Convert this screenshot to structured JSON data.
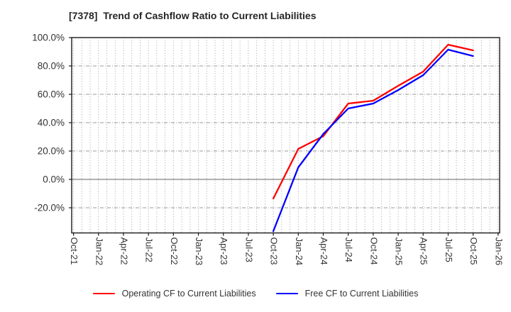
{
  "title": "[7378]  Trend of Cashflow Ratio to Current Liabilities",
  "chart_data": {
    "type": "line",
    "categories": [
      "Oct-21",
      "Jan-22",
      "Apr-22",
      "Jul-22",
      "Oct-22",
      "Jan-23",
      "Apr-23",
      "Jul-23",
      "Oct-23",
      "Jan-24",
      "Apr-24",
      "Jul-24",
      "Oct-24",
      "Jan-25",
      "Apr-25",
      "Jul-25",
      "Oct-25",
      "Jan-26"
    ],
    "series": [
      {
        "name": "Operating CF to Current Liabilities",
        "color": "#ff0000",
        "values": [
          null,
          null,
          null,
          null,
          null,
          null,
          null,
          null,
          -13.5,
          21.5,
          30.5,
          53.5,
          55.5,
          66,
          76,
          95,
          91,
          null
        ]
      },
      {
        "name": "Free CF to Current Liabilities",
        "color": "#0000ff",
        "values": [
          null,
          null,
          null,
          null,
          null,
          null,
          null,
          null,
          -36.5,
          8.5,
          32,
          50,
          53.5,
          63,
          73.5,
          91.5,
          87,
          null
        ]
      }
    ],
    "ytick_values": [
      100,
      80,
      60,
      40,
      20,
      0,
      -20
    ],
    "ytick_labels": [
      "100.0%",
      "80.0%",
      "60.0%",
      "40.0%",
      "20.0%",
      "0.0%",
      "-20.0%"
    ],
    "ylim": [
      -37.9,
      100
    ],
    "grid": "monthly dotted vertical, dashed horizontal, solid gray zero line",
    "legend_position": "bottom"
  },
  "legend": {
    "items": [
      {
        "label": "Operating CF to Current Liabilities",
        "color": "#ff0000"
      },
      {
        "label": "Free CF to Current Liabilities",
        "color": "#0000ff"
      }
    ]
  },
  "style_colors": {
    "title_text": "#262626",
    "tick_text": "#333333",
    "spine": "#1a1a1a",
    "grid": "#999999",
    "zero_line": "#808080"
  }
}
